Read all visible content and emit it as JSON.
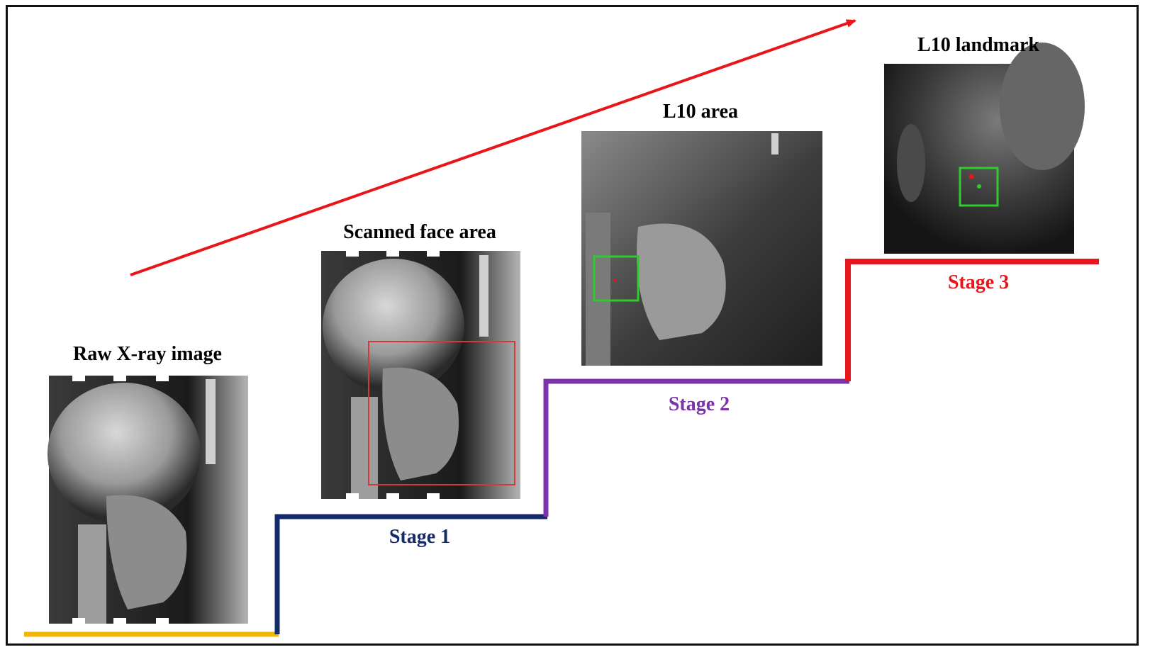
{
  "captions": {
    "raw": "Raw X-ray image",
    "face": "Scanned face area",
    "area": "L10 area",
    "landmark": "L10 landmark"
  },
  "stages": [
    {
      "label": "Stage 1",
      "color": "#132a6b"
    },
    {
      "label": "Stage 2",
      "color": "#7a33a8"
    },
    {
      "label": "Stage 3",
      "color": "#e8161b"
    }
  ],
  "colors": {
    "baseline": "#f2b705",
    "arrow": "#e8161b",
    "detection_box": "#2ecc2e",
    "face_box": "#d23a3a"
  }
}
